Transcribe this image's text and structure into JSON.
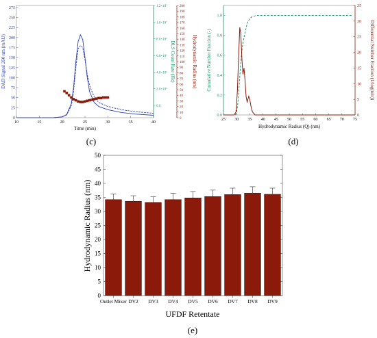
{
  "panels": {
    "c": "(c)",
    "d": "(d)",
    "e": "(e)"
  },
  "colors": {
    "blue": "#2b3fb5",
    "green": "#1a9a6a",
    "red": "#8b1a0a",
    "bar": "#8b1a0a"
  },
  "chart_data": [
    {
      "panel": "c",
      "type": "line",
      "xlabel": "Time (min)",
      "ylabel_left": "DAD Signal 260 nm (mAU)",
      "ylabel_right1": "DLS Count Rate (Hz)",
      "ylabel_right2": "Hydrodynamic Radius (nm)",
      "xlim": [
        10,
        40
      ],
      "ylim_left": [
        0,
        280
      ],
      "ylim_right1": [
        0,
        12000000.0
      ],
      "ylim_right2": [
        0,
        200
      ],
      "x_ticks": [
        "10",
        "15",
        "20",
        "25",
        "30",
        "35",
        "40"
      ],
      "y_left_ticks": [
        "0",
        "25",
        "50",
        "75",
        "100",
        "125",
        "150",
        "175",
        "200",
        "225",
        "250",
        "275"
      ],
      "y_right1_ticks": [
        "0.0",
        "2.0×10⁶",
        "4.0×10⁶",
        "6.0×10⁶",
        "8.0×10⁶",
        "1.0×10⁷",
        "1.2×10⁷"
      ],
      "y_right2_ticks": [
        "0",
        "10",
        "20",
        "30",
        "40",
        "50",
        "60",
        "70",
        "80",
        "90",
        "100",
        "110",
        "120",
        "130",
        "140",
        "150",
        "160",
        "170",
        "180",
        "190",
        "200"
      ],
      "series": [
        {
          "kind": "solid-blue",
          "axis": "left",
          "x": [
            10,
            18,
            20,
            21,
            22,
            22.5,
            23,
            23.5,
            24,
            24.5,
            25,
            25.5,
            26,
            27,
            28,
            30,
            33,
            36,
            40
          ],
          "y": [
            0,
            0,
            2,
            8,
            35,
            75,
            140,
            190,
            207,
            195,
            150,
            100,
            65,
            38,
            28,
            20,
            13,
            9,
            6
          ]
        },
        {
          "kind": "dashed-blue",
          "axis": "left",
          "x": [
            10,
            18,
            20,
            21,
            22,
            22.5,
            23,
            23.5,
            24,
            24.5,
            25,
            25.5,
            26,
            27,
            28,
            30,
            33,
            36,
            40
          ],
          "y": [
            0,
            0,
            2,
            7,
            30,
            65,
            125,
            172,
            180,
            175,
            145,
            108,
            80,
            52,
            38,
            28,
            20,
            15,
            11
          ]
        },
        {
          "kind": "red-markers",
          "axis": "right2",
          "x": [
            20.5,
            21,
            21.5,
            22,
            22.5,
            23,
            23.5,
            24,
            24.5,
            25,
            25.5,
            26,
            26.5,
            27,
            27.5,
            28,
            28.5,
            29,
            29.5,
            30
          ],
          "y": [
            47,
            44,
            40,
            36,
            33,
            31,
            29,
            28,
            28,
            29,
            30,
            31,
            32,
            33,
            34,
            35,
            35,
            36,
            36,
            36
          ]
        }
      ]
    },
    {
      "panel": "d",
      "type": "line",
      "xlabel": "Hydrodynamic Radius (Q) (nm)",
      "ylabel_left": "Cumulative Number Fraction (-)",
      "ylabel_right": "Differential Number Fraction (1/log(nm))",
      "xlim": [
        25,
        75
      ],
      "ylim_left": [
        0,
        1.1
      ],
      "ylim_right": [
        0,
        35
      ],
      "x_ticks": [
        "25",
        "30",
        "35",
        "40",
        "45",
        "50",
        "55",
        "60",
        "65",
        "70",
        "75"
      ],
      "y_left_ticks": [
        "0.0",
        "0.2",
        "0.4",
        "0.6",
        "0.8",
        "1.0"
      ],
      "y_right_ticks": [
        "0",
        "5",
        "10",
        "15",
        "20",
        "25",
        "30",
        "35"
      ],
      "series": [
        {
          "kind": "dashed-green",
          "axis": "left",
          "x": [
            29.5,
            30,
            30.5,
            31,
            31.5,
            32,
            32.5,
            33,
            33.5,
            34,
            35,
            36,
            38,
            40,
            45,
            50,
            60,
            70,
            74
          ],
          "y": [
            0,
            0.03,
            0.12,
            0.3,
            0.5,
            0.65,
            0.74,
            0.8,
            0.86,
            0.92,
            0.97,
            0.99,
            1.0,
            1.0,
            1.0,
            1.0,
            1.0,
            1.0,
            1.0
          ]
        },
        {
          "kind": "solid-red",
          "axis": "right",
          "x": [
            25,
            29,
            29.8,
            30.3,
            30.8,
            31.2,
            31.6,
            32,
            32.4,
            32.8,
            33.2,
            33.6,
            34,
            34.3,
            34.6,
            35,
            35.4,
            36,
            37,
            45,
            75
          ],
          "y": [
            0,
            0,
            1,
            8,
            20,
            28,
            26,
            18,
            13,
            15,
            11,
            6,
            4,
            5,
            6,
            5,
            3,
            1,
            0,
            0,
            0
          ]
        }
      ]
    },
    {
      "panel": "e",
      "type": "bar",
      "xlabel": "UFDF Retentate",
      "ylabel": "Hydrodynamic Radius (nm)",
      "ylim": [
        0,
        50
      ],
      "y_ticks": [
        "0",
        "5",
        "10",
        "15",
        "20",
        "25",
        "30",
        "35",
        "40",
        "45",
        "50"
      ],
      "categories": [
        "Outlet Mixer",
        "DV2",
        "DV3",
        "DV4",
        "DV5",
        "DV6",
        "DV7",
        "DV8",
        "DV9"
      ],
      "values": [
        34.2,
        33.6,
        33.2,
        34.2,
        34.8,
        35.3,
        36.0,
        36.5,
        36.1
      ],
      "errors": [
        2.0,
        2.0,
        2.0,
        2.3,
        2.3,
        2.3,
        2.3,
        2.3,
        2.2
      ]
    }
  ]
}
